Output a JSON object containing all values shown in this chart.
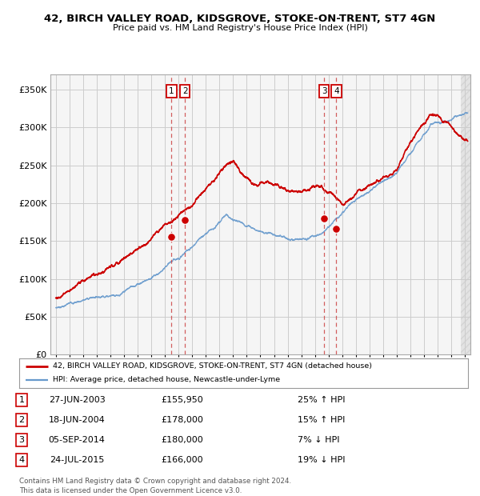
{
  "title1": "42, BIRCH VALLEY ROAD, KIDSGROVE, STOKE-ON-TRENT, ST7 4GN",
  "title2": "Price paid vs. HM Land Registry's House Price Index (HPI)",
  "ylabel_values": [
    0,
    50000,
    100000,
    150000,
    200000,
    250000,
    300000,
    350000
  ],
  "ylim": [
    0,
    370000
  ],
  "xlim_start": 1994.6,
  "xlim_end": 2025.4,
  "line1_color": "#cc0000",
  "line2_color": "#6699cc",
  "sale_color": "#cc0000",
  "vline_color": "#cc4444",
  "grid_color": "#cccccc",
  "legend1": "42, BIRCH VALLEY ROAD, KIDSGROVE, STOKE-ON-TRENT, ST7 4GN (detached house)",
  "legend2": "HPI: Average price, detached house, Newcastle-under-Lyme",
  "transactions": [
    {
      "num": 1,
      "date": "27-JUN-2003",
      "price": "£155,950",
      "pct": "25%",
      "dir": "↑",
      "year": 2003.48,
      "value": 155950
    },
    {
      "num": 2,
      "date": "18-JUN-2004",
      "price": "£178,000",
      "pct": "15%",
      "dir": "↑",
      "year": 2004.46,
      "value": 178000
    },
    {
      "num": 3,
      "date": "05-SEP-2014",
      "price": "£180,000",
      "pct": "7%",
      "dir": "↓",
      "year": 2014.67,
      "value": 180000
    },
    {
      "num": 4,
      "date": "24-JUL-2015",
      "price": "£166,000",
      "pct": "19%",
      "dir": "↓",
      "year": 2015.56,
      "value": 166000
    }
  ],
  "footnote1": "Contains HM Land Registry data © Crown copyright and database right 2024.",
  "footnote2": "This data is licensed under the Open Government Licence v3.0.",
  "background_color": "#ffffff",
  "plot_bg_color": "#f5f5f5"
}
